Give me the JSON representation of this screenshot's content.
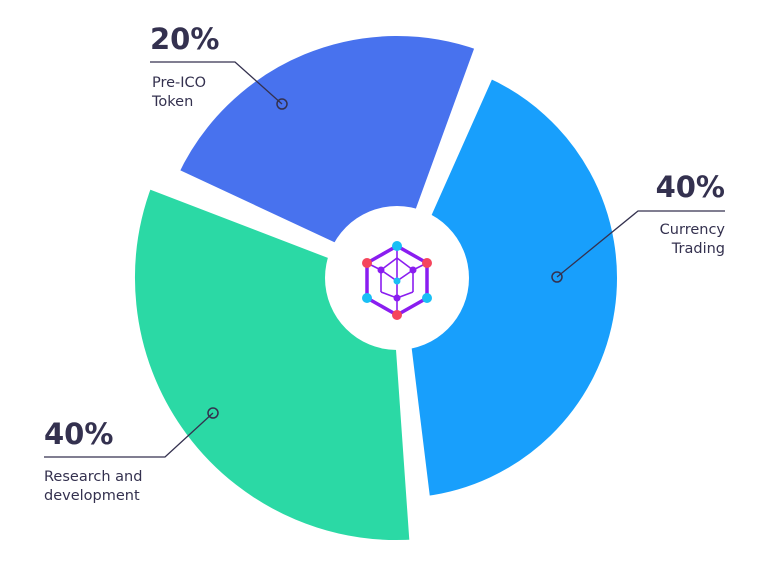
{
  "chart_data": {
    "type": "pie",
    "title": "",
    "slices": [
      {
        "label_lines": [
          "Pre-ICO",
          "Token"
        ],
        "value": 20,
        "display": "20%",
        "color": "#4872EE"
      },
      {
        "label_lines": [
          "Currency",
          "Trading"
        ],
        "value": 40,
        "display": "40%",
        "color": "#189FFC"
      },
      {
        "label_lines": [
          "Research and",
          "development"
        ],
        "value": 40,
        "display": "40%",
        "color": "#2BD9A5"
      }
    ],
    "donut": true,
    "center_icon": "hexagon-network-logo-icon",
    "colors": {
      "text": "#34314f",
      "logo_purple": "#8A1DF0",
      "logo_cyan": "#19BFF5",
      "logo_red": "#F5455C"
    }
  }
}
